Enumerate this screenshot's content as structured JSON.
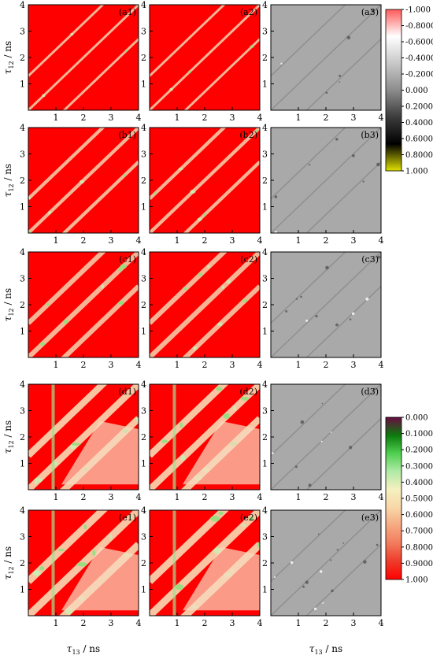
{
  "figure": {
    "ylabel_main": "τ",
    "ylabel_sub": "12",
    "ylabel_unit": " / ns",
    "xlabel_main": "τ",
    "xlabel_sub": "13",
    "xlabel_unit": " / ns"
  },
  "colorbars": [
    {
      "id": "diff",
      "ticks": [
        "-1.000",
        "-0.8000",
        "-0.6000",
        "-0.4000",
        "-0.2000",
        "0.000",
        "0.2000",
        "0.4000",
        "0.6000",
        "0.8000",
        "1.000"
      ],
      "stops": [
        "#ff5a5a",
        "#ffffff",
        "#c8c8c8",
        "#8c8c8c",
        "#3c3c3c",
        "#000000",
        "#e0e000"
      ]
    },
    {
      "id": "fidelity",
      "ticks": [
        "0.000",
        "0.1000",
        "0.2000",
        "0.3000",
        "0.4000",
        "0.5000",
        "0.6000",
        "0.7000",
        "0.8000",
        "0.9000",
        "1.000"
      ],
      "stops": [
        "#6a0a44",
        "#0c7a0c",
        "#4fcf4f",
        "#b0eaa6",
        "#f5f0c0",
        "#f8d7a8",
        "#f6a981",
        "#f27a5c",
        "#ee3a2a",
        "#ff0000"
      ]
    }
  ],
  "chart_data": [
    {
      "type": "heatmap",
      "panel": "(a1)",
      "row": "a",
      "col": 1,
      "x_ticks": [
        "1",
        "2",
        "3",
        "4"
      ],
      "y_ticks": [
        "1",
        "2",
        "3",
        "4"
      ],
      "xlim": [
        0,
        4
      ],
      "ylim": [
        0,
        4
      ],
      "band_level": 0.2
    },
    {
      "type": "heatmap",
      "panel": "(a2)",
      "row": "a",
      "col": 2,
      "x_ticks": [
        "1",
        "2",
        "3",
        "4"
      ],
      "y_ticks": [
        "1",
        "2",
        "3",
        "4"
      ],
      "xlim": [
        0,
        4
      ],
      "ylim": [
        0,
        4
      ],
      "band_level": 0.2
    },
    {
      "type": "heatmap",
      "panel": "(a3)",
      "row": "a",
      "col": 3,
      "x_ticks": [
        "1",
        "2",
        "3",
        "4"
      ],
      "y_ticks": [
        "1",
        "2",
        "3",
        "4"
      ],
      "xlim": [
        0,
        4
      ],
      "ylim": [
        0,
        4
      ],
      "band_level": 0.1
    },
    {
      "type": "heatmap",
      "panel": "(b1)",
      "row": "b",
      "col": 1,
      "x_ticks": [
        "1",
        "2",
        "3",
        "4"
      ],
      "y_ticks": [
        "1",
        "2",
        "3",
        "4"
      ],
      "xlim": [
        0,
        4
      ],
      "ylim": [
        0,
        4
      ],
      "band_level": 0.35
    },
    {
      "type": "heatmap",
      "panel": "(b2)",
      "row": "b",
      "col": 2,
      "x_ticks": [
        "1",
        "2",
        "3",
        "4"
      ],
      "y_ticks": [
        "1",
        "2",
        "3",
        "4"
      ],
      "xlim": [
        0,
        4
      ],
      "ylim": [
        0,
        4
      ],
      "band_level": 0.35
    },
    {
      "type": "heatmap",
      "panel": "(b3)",
      "row": "b",
      "col": 3,
      "x_ticks": [
        "1",
        "2",
        "3",
        "4"
      ],
      "y_ticks": [
        "1",
        "2",
        "3",
        "4"
      ],
      "xlim": [
        0,
        4
      ],
      "ylim": [
        0,
        4
      ],
      "band_level": 0.1
    },
    {
      "type": "heatmap",
      "panel": "(c1)",
      "row": "c",
      "col": 1,
      "x_ticks": [
        "1",
        "2",
        "3",
        "4"
      ],
      "y_ticks": [
        "1",
        "2",
        "3",
        "4"
      ],
      "xlim": [
        0,
        4
      ],
      "ylim": [
        0,
        4
      ],
      "band_level": 0.55
    },
    {
      "type": "heatmap",
      "panel": "(c2)",
      "row": "c",
      "col": 2,
      "x_ticks": [
        "1",
        "2",
        "3",
        "4"
      ],
      "y_ticks": [
        "1",
        "2",
        "3",
        "4"
      ],
      "xlim": [
        0,
        4
      ],
      "ylim": [
        0,
        4
      ],
      "band_level": 0.55
    },
    {
      "type": "heatmap",
      "panel": "(c3)",
      "row": "c",
      "col": 3,
      "x_ticks": [
        "1",
        "2",
        "3",
        "4"
      ],
      "y_ticks": [
        "1",
        "2",
        "3",
        "4"
      ],
      "xlim": [
        0,
        4
      ],
      "ylim": [
        0,
        4
      ],
      "band_level": 0.2
    },
    {
      "type": "heatmap",
      "panel": "(d1)",
      "row": "d",
      "col": 1,
      "x_ticks": [
        "1",
        "2",
        "3",
        "4"
      ],
      "y_ticks": [
        "1",
        "2",
        "3",
        "4"
      ],
      "xlim": [
        0,
        4
      ],
      "ylim": [
        0,
        4
      ],
      "band_level": 0.8
    },
    {
      "type": "heatmap",
      "panel": "(d2)",
      "row": "d",
      "col": 2,
      "x_ticks": [
        "1",
        "2",
        "3",
        "4"
      ],
      "y_ticks": [
        "1",
        "2",
        "3",
        "4"
      ],
      "xlim": [
        0,
        4
      ],
      "ylim": [
        0,
        4
      ],
      "band_level": 0.8
    },
    {
      "type": "heatmap",
      "panel": "(d3)",
      "row": "d",
      "col": 3,
      "x_ticks": [
        "1",
        "2",
        "3",
        "4"
      ],
      "y_ticks": [
        "1",
        "2",
        "3",
        "4"
      ],
      "xlim": [
        0,
        4
      ],
      "ylim": [
        0,
        4
      ],
      "band_level": 0.2
    },
    {
      "type": "heatmap",
      "panel": "(e1)",
      "row": "e",
      "col": 1,
      "x_ticks": [
        "1",
        "2",
        "3",
        "4"
      ],
      "y_ticks": [
        "1",
        "2",
        "3",
        "4"
      ],
      "xlim": [
        0,
        4
      ],
      "ylim": [
        0,
        4
      ],
      "band_level": 0.9
    },
    {
      "type": "heatmap",
      "panel": "(e2)",
      "row": "e",
      "col": 2,
      "x_ticks": [
        "1",
        "2",
        "3",
        "4"
      ],
      "y_ticks": [
        "1",
        "2",
        "3",
        "4"
      ],
      "xlim": [
        0,
        4
      ],
      "ylim": [
        0,
        4
      ],
      "band_level": 0.9
    },
    {
      "type": "heatmap",
      "panel": "(e3)",
      "row": "e",
      "col": 3,
      "x_ticks": [
        "1",
        "2",
        "3",
        "4"
      ],
      "y_ticks": [
        "1",
        "2",
        "3",
        "4"
      ],
      "xlim": [
        0,
        4
      ],
      "ylim": [
        0,
        4
      ],
      "band_level": 0.3
    }
  ]
}
